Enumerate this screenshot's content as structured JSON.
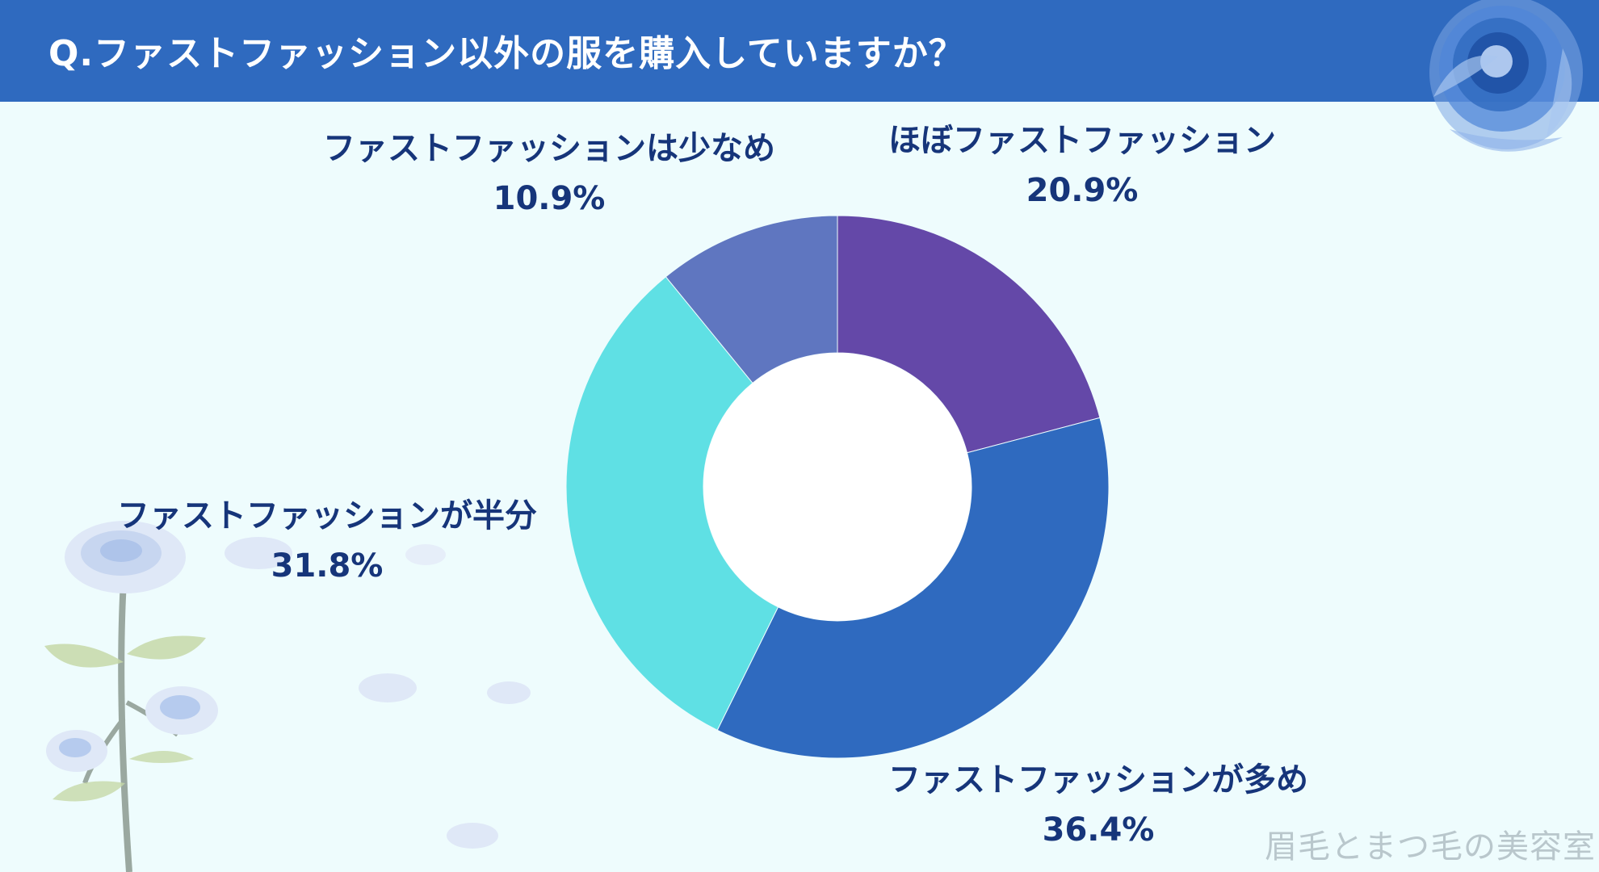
{
  "header": {
    "title": "Q.ファストファッション以外の服を購入していますか？"
  },
  "chart_data": {
    "type": "pie",
    "variant": "donut",
    "categories": [
      "ほぼファストファッション",
      "ファストファッションが多め",
      "ファストファッションが半分",
      "ファストファッションは少なめ"
    ],
    "values": [
      20.9,
      36.4,
      31.8,
      10.9
    ],
    "value_labels": [
      "20.9%",
      "36.4%",
      "31.8%",
      "10.9%"
    ],
    "colors": [
      "#6448a8",
      "#2f6abf",
      "#5fe0e4",
      "#5f76c0"
    ],
    "title": "Q.ファストファッション以外の服を購入していますか？"
  },
  "watermark": "眉毛とまつ毛の美容室",
  "icons": {
    "top_right": "blue-rose-icon",
    "bottom_left": "blue-rose-stem-icon"
  }
}
